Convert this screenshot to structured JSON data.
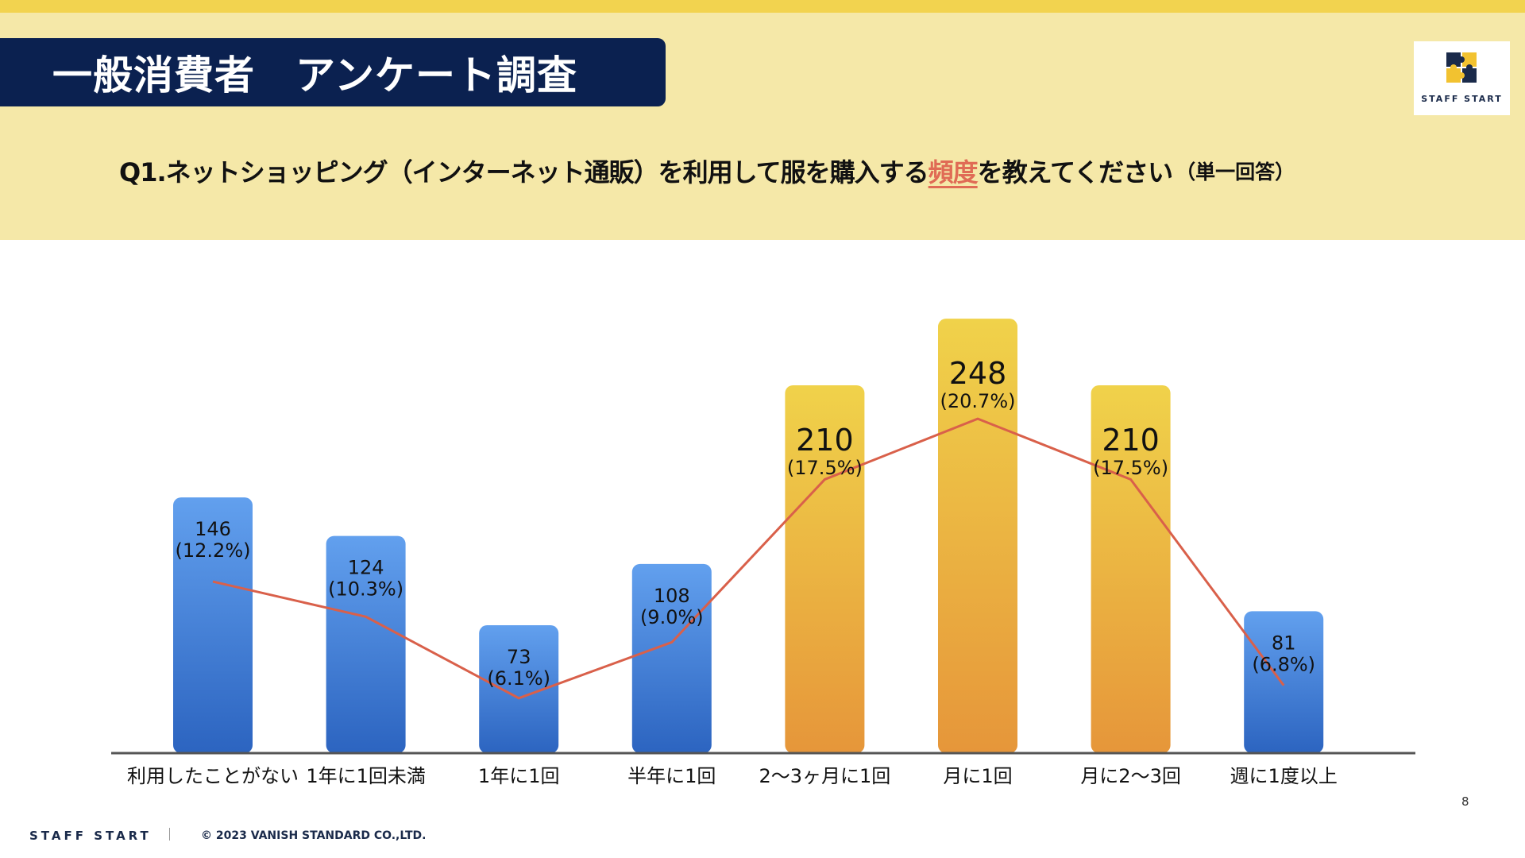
{
  "slide": {
    "title": "一般消費者　アンケート調査",
    "question_before": "Q1.ネットショッピング（インターネット通販）を利用して服を購入する",
    "question_highlight": "頻度",
    "question_after": "を教えてください",
    "question_note": "（単一回答）",
    "logo_text": "STAFF START",
    "page_number": "8"
  },
  "footer": {
    "brand": "STAFF START",
    "copyright": "© 2023 VANISH STANDARD CO.,LTD."
  },
  "colors": {
    "banner": "#0b2150",
    "header_band": "#f5e8a8",
    "top_stripe": "#f2d34f",
    "bar_blue_top": "#62a0ee",
    "bar_blue_bottom": "#2c64c0",
    "bar_gold_top": "#f0d24a",
    "bar_gold_bottom": "#e6963a",
    "line": "#d9604a",
    "highlight": "#e06b55",
    "axis": "#555555"
  },
  "icons": {
    "logo": "puzzle-logo-icon"
  },
  "chart_data": {
    "type": "bar",
    "categories": [
      "利用したことがない",
      "1年に1回未満",
      "1年に1回",
      "半年に1回",
      "2〜3ヶ月に1回",
      "月に1回",
      "月に2〜3回",
      "週に1度以上"
    ],
    "values": [
      146,
      124,
      73,
      108,
      210,
      248,
      210,
      81
    ],
    "data_labels": [
      "146",
      "124",
      "73",
      "108",
      "210",
      "248",
      "210",
      "81"
    ],
    "percent_labels": [
      "(12.2%)",
      "(10.3%)",
      "(6.1%)",
      "(9.0%)",
      "(17.5%)",
      "(20.7%)",
      "(17.5%)",
      "(6.8%)"
    ],
    "highlighted": [
      false,
      false,
      false,
      false,
      true,
      true,
      true,
      false
    ],
    "line_overlay": [
      146,
      124,
      73,
      108,
      210,
      248,
      210,
      81
    ],
    "ylim": [
      0,
      280
    ],
    "title": "",
    "xlabel": "",
    "ylabel": "",
    "grid": false,
    "legend": "none"
  }
}
